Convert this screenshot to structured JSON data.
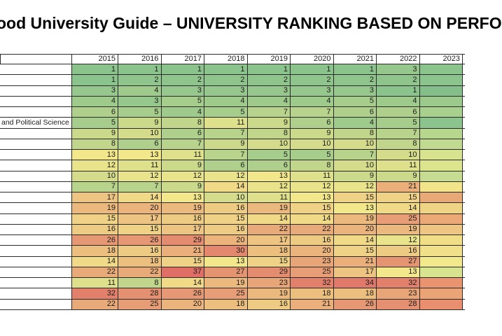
{
  "title": {
    "text": "ood University Guide – UNIVERSITY RANKING BASED ON PERFO",
    "note": "title clipped at both left and right edges of the screenshot"
  },
  "chart_data": {
    "type": "heatmap",
    "title": "ood University Guide – UNIVERSITY RANKING BASED ON PERFO",
    "columns": [
      "2015",
      "2016",
      "2017",
      "2018",
      "2019",
      "2020",
      "2021",
      "2022",
      "2023"
    ],
    "row_label_column": {
      "visible_label": "and Political Science",
      "note": "left name column clipped; only tail of one long university name visible on row 6"
    },
    "clipped_2023_note": "2023 numbers are cut off at the right edge; only cell colors visible",
    "rows": [
      {
        "label": "",
        "values": [
          1,
          1,
          1,
          1,
          1,
          1,
          1,
          3
        ],
        "c2023": "#8CC48E"
      },
      {
        "label": "",
        "values": [
          1,
          2,
          2,
          2,
          2,
          2,
          2,
          2
        ],
        "c2023": "#8CC48E"
      },
      {
        "label": "",
        "values": [
          3,
          4,
          3,
          3,
          3,
          3,
          3,
          1
        ],
        "c2023": "#84BF89"
      },
      {
        "label": "",
        "values": [
          4,
          3,
          5,
          4,
          4,
          4,
          5,
          4
        ],
        "c2023": "#9CCA8C"
      },
      {
        "label": "",
        "values": [
          6,
          5,
          4,
          5,
          7,
          7,
          6,
          6
        ],
        "c2023": "#A9D18E"
      },
      {
        "label": "and Political Science",
        "values": [
          5,
          9,
          8,
          11,
          9,
          6,
          4,
          5
        ],
        "c2023": "#8CC48E"
      },
      {
        "label": "",
        "values": [
          9,
          10,
          6,
          7,
          8,
          9,
          8,
          7
        ],
        "c2023": "#B7D78F"
      },
      {
        "label": "",
        "values": [
          8,
          6,
          7,
          9,
          10,
          10,
          10,
          8
        ],
        "c2023": "#C0DB90"
      },
      {
        "label": "",
        "values": [
          13,
          13,
          11,
          7,
          5,
          5,
          7,
          10
        ],
        "c2023": "#D8E38F"
      },
      {
        "label": "",
        "values": [
          12,
          11,
          9,
          6,
          6,
          8,
          10,
          11
        ],
        "c2023": "#DCE48E"
      },
      {
        "label": "",
        "values": [
          10,
          12,
          12,
          12,
          13,
          11,
          9,
          9
        ],
        "c2023": "#C6DC90"
      },
      {
        "label": "",
        "values": [
          7,
          7,
          9,
          14,
          12,
          12,
          12,
          21
        ],
        "c2023": "#F2E48B"
      },
      {
        "label": "",
        "values": [
          17,
          14,
          13,
          10,
          11,
          13,
          15,
          15
        ],
        "c2023": "#E9A977"
      },
      {
        "label": "",
        "values": [
          19,
          20,
          19,
          16,
          19,
          15,
          13,
          14
        ],
        "c2023": "#F0D485"
      },
      {
        "label": "",
        "values": [
          15,
          17,
          16,
          15,
          14,
          14,
          19,
          25
        ],
        "c2023": "#EAA976"
      },
      {
        "label": "",
        "values": [
          16,
          15,
          17,
          16,
          22,
          22,
          20,
          19
        ],
        "c2023": "#EFC582"
      },
      {
        "label": "",
        "values": [
          26,
          26,
          29,
          20,
          17,
          16,
          14,
          12
        ],
        "c2023": "#F0DE87"
      },
      {
        "label": "",
        "values": [
          18,
          16,
          21,
          30,
          18,
          20,
          15,
          16
        ],
        "c2023": "#F0E089"
      },
      {
        "label": "",
        "values": [
          14,
          18,
          15,
          13,
          15,
          23,
          21,
          27
        ],
        "c2023": "#F2E88C"
      },
      {
        "label": "",
        "values": [
          22,
          22,
          37,
          27,
          29,
          25,
          17,
          13
        ],
        "c2023": "#D8E38F"
      },
      {
        "label": "",
        "values": [
          11,
          8,
          14,
          19,
          23,
          32,
          34,
          32
        ],
        "c2023": "#E9946F"
      },
      {
        "label": "",
        "values": [
          32,
          28,
          26,
          25,
          19,
          18,
          18,
          23
        ],
        "c2023": "#EBA475"
      },
      {
        "label": "",
        "values": [
          22,
          25,
          20,
          18,
          16,
          21,
          26,
          28
        ],
        "c2023": "#E98E6E"
      }
    ],
    "color_scale": {
      "low": "#8AC38C",
      "mid": "#F3E78B",
      "high": "#DF6E67",
      "min_value": 1,
      "mid_value": 13,
      "max_value": 37
    },
    "layout": {
      "grid": true,
      "legend": false,
      "values_right_aligned": true
    }
  }
}
